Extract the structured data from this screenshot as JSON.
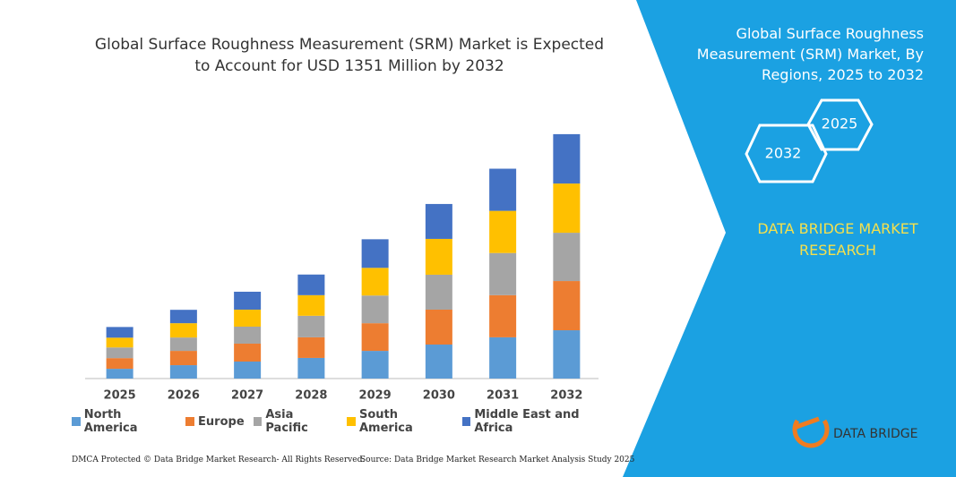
{
  "chart_data": {
    "type": "stacked_bar",
    "title": "Global Surface Roughness Measurement (SRM) Market is Expected to Account for USD 1351 Million by 2032",
    "categories": [
      "2025",
      "2026",
      "2027",
      "2028",
      "2029",
      "2030",
      "2031",
      "2032"
    ],
    "series": [
      {
        "name": "North America",
        "color": "#5b9bd5",
        "values": [
          54,
          74,
          94,
          114,
          153,
          188,
          228,
          267
        ]
      },
      {
        "name": "Europe",
        "color": "#ed7d31",
        "values": [
          59,
          79,
          99,
          114,
          153,
          193,
          233,
          272
        ]
      },
      {
        "name": "Asia Pacific",
        "color": "#a5a5a5",
        "values": [
          59,
          74,
          94,
          119,
          153,
          193,
          233,
          267
        ]
      },
      {
        "name": "South America",
        "color": "#ffc000",
        "values": [
          54,
          79,
          94,
          114,
          153,
          198,
          233,
          272
        ]
      },
      {
        "name": "Middle East and Africa",
        "color": "#4472c4",
        "values": [
          59,
          74,
          99,
          114,
          158,
          193,
          233,
          273
        ]
      }
    ],
    "ylim": [
      0,
      1400
    ]
  },
  "side_panel": {
    "title": "Global Surface Roughness Measurement (SRM) Market, By Regions, 2025 to 2032",
    "hexagon_left": "2032",
    "hexagon_right": "2025",
    "brand": "DATA BRIDGE MARKET RESEARCH",
    "logo_text": "DATA BRIDGE"
  },
  "footer": {
    "left": "DMCA Protected © Data Bridge Market Research-  All Rights Reserved.",
    "right": "Source: Data Bridge Market Research  Market Analysis Study 2025"
  }
}
